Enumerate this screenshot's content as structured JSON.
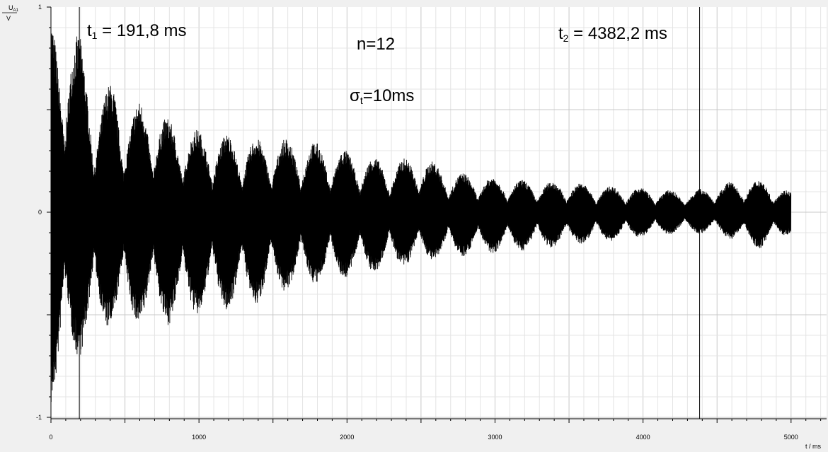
{
  "chart_data": {
    "type": "line",
    "xlabel": "t / ms",
    "ylabel": {
      "main": "U",
      "sub": "A1",
      "unit": "V"
    },
    "xlim": [
      0,
      5240
    ],
    "ylim": [
      -1,
      1
    ],
    "x_ticks": [
      {
        "value": 0,
        "label": "0"
      },
      {
        "value": 1000,
        "label": "1000"
      },
      {
        "value": 2000,
        "label": "2000"
      },
      {
        "value": 3000,
        "label": "3000"
      },
      {
        "value": 4000,
        "label": "4000"
      },
      {
        "value": 5000,
        "label": "5000"
      }
    ],
    "y_ticks": [
      {
        "value": 1,
        "label": "1"
      },
      {
        "value": 0,
        "label": "0"
      },
      {
        "value": -1,
        "label": "-1"
      }
    ],
    "grid": true,
    "series": [
      {
        "style": "dense-oscillation",
        "color": "#000000",
        "x_start": 0,
        "x_end": 5000,
        "envelope_upper": [
          [
            0,
            0.95
          ],
          [
            60,
            0.9
          ],
          [
            110,
            0.95
          ],
          [
            200,
            0.85
          ],
          [
            270,
            0.65
          ],
          [
            300,
            0.55
          ],
          [
            430,
            0.65
          ],
          [
            520,
            0.5
          ],
          [
            620,
            0.55
          ],
          [
            810,
            0.45
          ],
          [
            1000,
            0.4
          ],
          [
            1200,
            0.38
          ],
          [
            1400,
            0.36
          ],
          [
            1600,
            0.36
          ],
          [
            1750,
            0.35
          ],
          [
            2000,
            0.3
          ],
          [
            2300,
            0.25
          ],
          [
            2500,
            0.28
          ],
          [
            2700,
            0.2
          ],
          [
            3000,
            0.17
          ],
          [
            3300,
            0.15
          ],
          [
            3500,
            0.15
          ],
          [
            3700,
            0.13
          ],
          [
            4000,
            0.12
          ],
          [
            4300,
            0.1
          ],
          [
            4600,
            0.15
          ],
          [
            4800,
            0.16
          ],
          [
            5000,
            0.1
          ]
        ],
        "envelope_lower": [
          [
            0,
            -0.95
          ],
          [
            60,
            -0.92
          ],
          [
            110,
            -0.75
          ],
          [
            200,
            -0.7
          ],
          [
            300,
            -0.6
          ],
          [
            430,
            -0.55
          ],
          [
            620,
            -0.55
          ],
          [
            810,
            -0.55
          ],
          [
            1000,
            -0.5
          ],
          [
            1200,
            -0.48
          ],
          [
            1400,
            -0.45
          ],
          [
            1600,
            -0.38
          ],
          [
            1800,
            -0.35
          ],
          [
            2000,
            -0.32
          ],
          [
            2300,
            -0.28
          ],
          [
            2500,
            -0.25
          ],
          [
            2700,
            -0.22
          ],
          [
            3000,
            -0.2
          ],
          [
            3300,
            -0.18
          ],
          [
            3500,
            -0.16
          ],
          [
            3700,
            -0.15
          ],
          [
            4000,
            -0.12
          ],
          [
            4300,
            -0.1
          ],
          [
            4500,
            -0.11
          ],
          [
            4800,
            -0.18
          ],
          [
            5000,
            -0.1
          ]
        ]
      }
    ],
    "cursors": [
      {
        "x": 191.8
      },
      {
        "x": 4382.2
      }
    ],
    "annotations": {
      "t1": {
        "sym": "t",
        "sub": "1",
        "text": " =  191,8 ms"
      },
      "t2": {
        "sym": "t",
        "sub": "2",
        "text": " =  4382,2 ms"
      },
      "n": "n=12",
      "sigma": {
        "sym": "σ",
        "sub": "t",
        "text": "=10ms"
      }
    }
  }
}
